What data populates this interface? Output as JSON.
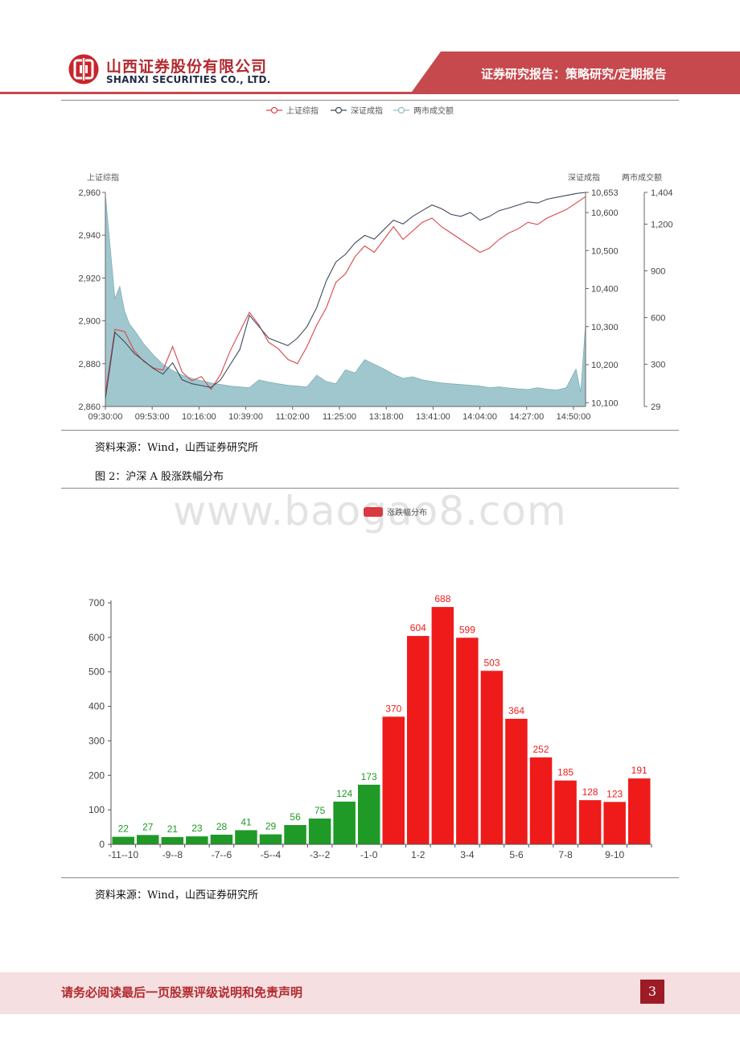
{
  "header": {
    "company_cn": "山西证券股份有限公司",
    "company_en": "SHANXI SECURITIES CO., LTD.",
    "report_type": "证券研究报告：策略研究/定期报告",
    "accent_color": "#c6494d"
  },
  "figure1": {
    "legend": [
      "上证综指",
      "深证成指",
      "两市成交额"
    ],
    "left_axis_title": "上证综指",
    "right_axis_title_1": "深证成指",
    "right_axis_title_2": "两市成交额",
    "source": "资料来源：Wind，山西证券研究所"
  },
  "figure2": {
    "caption": "图 2：沪深 A 股涨跌幅分布",
    "source": "资料来源：Wind，山西证券研究所"
  },
  "watermark": "www.baogao8.com",
  "footer": {
    "disclaimer": "请务必阅读最后一页股票评级说明和免责声明",
    "page_number": "3"
  },
  "chart_data": [
    {
      "type": "line",
      "x_tick_labels": [
        "09:30:00",
        "09:53:00",
        "10:16:00",
        "10:39:00",
        "11:02:00",
        "11:25:00",
        "13:18:00",
        "13:41:00",
        "14:04:00",
        "14:27:00",
        "14:50:00"
      ],
      "y_left": {
        "ticks": [
          "2,860",
          "2,880",
          "2,900",
          "2,920",
          "2,940",
          "2,960"
        ],
        "range": [
          2860,
          2960
        ]
      },
      "y_right_1": {
        "ticks": [
          "10,100",
          "10,200",
          "10,300",
          "10,400",
          "10,500",
          "10,600",
          "10,653"
        ],
        "range": [
          10090,
          10653
        ]
      },
      "y_right_2": {
        "ticks": [
          "29",
          "300",
          "600",
          "900",
          "1,200",
          "1,404"
        ],
        "range": [
          29,
          1404
        ]
      },
      "grid": false,
      "legend_position": "top",
      "series": [
        {
          "name": "上证综指",
          "color": "#d9464c",
          "axis": "left",
          "x": [
            0,
            2,
            4,
            6,
            8,
            10,
            12,
            14,
            16,
            18,
            20,
            22,
            24,
            26,
            28,
            30,
            32,
            34,
            36,
            38,
            40,
            42,
            44,
            46,
            48,
            50,
            52,
            54,
            56,
            58,
            60,
            62,
            64,
            66,
            68,
            70,
            72,
            74,
            76,
            78,
            80,
            82,
            84,
            86,
            88,
            90,
            92,
            94,
            96,
            98,
            100
          ],
          "values": [
            2866,
            2896,
            2895,
            2886,
            2881,
            2878,
            2877,
            2888,
            2876,
            2872,
            2874,
            2868,
            2875,
            2886,
            2895,
            2904,
            2898,
            2890,
            2887,
            2882,
            2880,
            2888,
            2898,
            2906,
            2918,
            2922,
            2930,
            2935,
            2932,
            2938,
            2944,
            2938,
            2942,
            2946,
            2948,
            2944,
            2941,
            2938,
            2935,
            2932,
            2934,
            2938,
            2941,
            2943,
            2946,
            2945,
            2948,
            2950,
            2952,
            2955,
            2958
          ]
        },
        {
          "name": "深证成指",
          "color": "#3d4a5c",
          "axis": "right_1",
          "x": [
            0,
            2,
            4,
            6,
            8,
            10,
            12,
            14,
            16,
            18,
            20,
            22,
            24,
            26,
            28,
            30,
            32,
            34,
            36,
            38,
            40,
            42,
            44,
            46,
            48,
            50,
            52,
            54,
            56,
            58,
            60,
            62,
            64,
            66,
            68,
            70,
            72,
            74,
            76,
            78,
            80,
            82,
            84,
            86,
            88,
            90,
            92,
            94,
            96,
            98,
            100
          ],
          "values": [
            10110,
            10285,
            10260,
            10230,
            10210,
            10190,
            10175,
            10205,
            10160,
            10150,
            10145,
            10140,
            10160,
            10200,
            10240,
            10330,
            10300,
            10270,
            10260,
            10250,
            10270,
            10300,
            10350,
            10420,
            10470,
            10490,
            10520,
            10540,
            10530,
            10555,
            10580,
            10570,
            10590,
            10605,
            10620,
            10610,
            10595,
            10590,
            10600,
            10580,
            10590,
            10605,
            10612,
            10620,
            10628,
            10625,
            10635,
            10640,
            10645,
            10650,
            10653
          ]
        },
        {
          "name": "两市成交额",
          "color": "#8fbdc4",
          "axis": "right_2",
          "x": [
            0,
            1,
            2,
            3,
            4,
            5,
            6,
            8,
            10,
            12,
            14,
            16,
            18,
            20,
            22,
            24,
            26,
            28,
            30,
            32,
            34,
            36,
            38,
            40,
            42,
            44,
            46,
            48,
            50,
            52,
            54,
            56,
            58,
            60,
            62,
            64,
            66,
            68,
            70,
            72,
            74,
            76,
            78,
            80,
            82,
            84,
            86,
            88,
            90,
            92,
            94,
            96,
            98,
            99,
            100
          ],
          "values": [
            1390,
            1050,
            720,
            800,
            640,
            560,
            520,
            430,
            360,
            300,
            260,
            230,
            210,
            195,
            180,
            170,
            160,
            155,
            150,
            200,
            185,
            175,
            165,
            160,
            155,
            230,
            190,
            175,
            265,
            245,
            330,
            300,
            270,
            235,
            210,
            220,
            200,
            190,
            180,
            175,
            170,
            165,
            160,
            150,
            155,
            148,
            142,
            138,
            150,
            140,
            135,
            150,
            270,
            120,
            560
          ]
        }
      ]
    },
    {
      "type": "bar",
      "legend": [
        "涨跌幅分布"
      ],
      "categories": [
        "-11--10",
        "-10--9",
        "-9--8",
        "-8--7",
        "-7--6",
        "-6--5",
        "-5--4",
        "-4--3",
        "-3--2",
        "-2--1",
        "-1-0",
        "0-1",
        "1-2",
        "2-3",
        "3-4",
        "4-5",
        "5-6",
        "6-7",
        "7-8",
        "8-9",
        "9-10",
        "10-11"
      ],
      "values": [
        22,
        27,
        21,
        23,
        28,
        41,
        29,
        56,
        75,
        124,
        173,
        370,
        604,
        688,
        599,
        503,
        364,
        252,
        185,
        128,
        123,
        191
      ],
      "colors": {
        "down": "#1f9a26",
        "up": "#ef1b1b"
      },
      "x_tick_labels": [
        "-11--10",
        "-9--8",
        "-7--6",
        "-5--4",
        "-3--2",
        "-1-0",
        "1-2",
        "3-4",
        "5-6",
        "7-8",
        "9-10"
      ],
      "y_ticks": [
        "0",
        "100",
        "200",
        "300",
        "400",
        "500",
        "600",
        "700"
      ],
      "ylim": [
        0,
        700
      ],
      "grid": false,
      "legend_position": "top"
    }
  ]
}
